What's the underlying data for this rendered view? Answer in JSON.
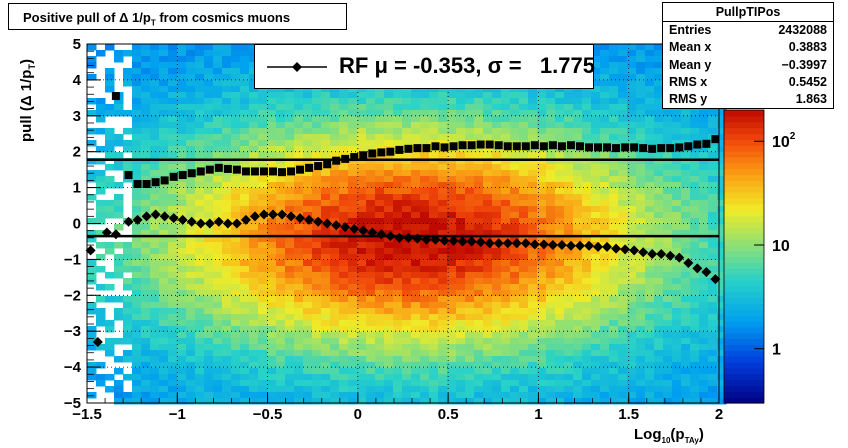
{
  "title": {
    "prefix": "Positive pull of ",
    "delta": "Δ",
    "mid": " 1/p",
    "sub": "T",
    "suffix": " from cosmics muons"
  },
  "stats": {
    "name": "PullpTIPos",
    "rows": [
      {
        "label": "Entries",
        "value": "2432088"
      },
      {
        "label": "Mean x",
        "value": "0.3883"
      },
      {
        "label": "Mean y",
        "value": "−0.3997"
      },
      {
        "label": "RMS x",
        "value": "0.5452"
      },
      {
        "label": "RMS y",
        "value": "1.863"
      }
    ]
  },
  "legend": {
    "text": "RF μ = -0.353, σ =   1.775"
  },
  "axes": {
    "ylabel": "pull (Δ 1/p",
    "ylabel_sub": "T",
    "ylabel_close": ")",
    "xlabel": "Log",
    "xlabel_sub": "10",
    "xlabel_mid": "(p",
    "xlabel_sub2": "TAy",
    "xlabel_close": ")"
  },
  "colors": {
    "marker": "#000000",
    "line": "#000000"
  },
  "chart_data": {
    "type": "heatmap",
    "title": "Positive pull of Δ 1/pT from cosmics muons",
    "xlabel": "Log10(pTAy)",
    "ylabel": "pull (Δ 1/pT)",
    "xlim": [
      -1.5,
      2
    ],
    "ylim": [
      -5,
      5
    ],
    "x_ticks": [
      -1.5,
      -1,
      -0.5,
      0,
      0.5,
      1,
      1.5,
      2
    ],
    "x_tick_labels": [
      "−1.5",
      "−1",
      "−0.5",
      "0",
      "0.5",
      "1",
      "1.5",
      "2"
    ],
    "y_ticks": [
      -5,
      -4,
      -3,
      -2,
      -1,
      0,
      1,
      2,
      3,
      4,
      5
    ],
    "y_tick_labels": [
      "−5",
      "−4",
      "−3",
      "−2",
      "−1",
      "0",
      "1",
      "2",
      "3",
      "4",
      "5"
    ],
    "grid": true,
    "z_scale": "log",
    "z_range": [
      0.3,
      200
    ],
    "z_tick_labels": [
      {
        "v": 1,
        "t": "1"
      },
      {
        "v": 10,
        "t": "10"
      },
      {
        "v": 100,
        "t": "10",
        "sup": "2"
      }
    ],
    "density_peak": {
      "x": 0.3,
      "y": -0.4,
      "sigma_x": 0.55,
      "sigma_y": 1.86
    },
    "hlines": [
      {
        "name": "sigma",
        "y": 1.775
      },
      {
        "name": "mu",
        "y": -0.353
      }
    ],
    "series": [
      {
        "name": "sigma",
        "marker": "square",
        "x": [
          -1.34,
          -1.27,
          -1.22,
          -1.17,
          -1.12,
          -1.07,
          -1.02,
          -0.97,
          -0.92,
          -0.87,
          -0.82,
          -0.77,
          -0.72,
          -0.67,
          -0.62,
          -0.57,
          -0.52,
          -0.47,
          -0.42,
          -0.37,
          -0.32,
          -0.27,
          -0.22,
          -0.17,
          -0.12,
          -0.07,
          -0.02,
          0.03,
          0.08,
          0.13,
          0.18,
          0.23,
          0.28,
          0.33,
          0.38,
          0.43,
          0.48,
          0.53,
          0.58,
          0.63,
          0.68,
          0.73,
          0.78,
          0.83,
          0.88,
          0.93,
          0.98,
          1.03,
          1.08,
          1.13,
          1.18,
          1.23,
          1.28,
          1.33,
          1.38,
          1.43,
          1.48,
          1.53,
          1.58,
          1.63,
          1.68,
          1.73,
          1.78,
          1.83,
          1.88,
          1.93,
          1.98
        ],
        "values": [
          3.55,
          1.35,
          1.1,
          1.1,
          1.15,
          1.2,
          1.3,
          1.35,
          1.4,
          1.45,
          1.5,
          1.55,
          1.52,
          1.5,
          1.45,
          1.45,
          1.45,
          1.45,
          1.43,
          1.45,
          1.5,
          1.55,
          1.6,
          1.65,
          1.75,
          1.8,
          1.85,
          1.9,
          1.95,
          1.98,
          2.0,
          2.05,
          2.08,
          2.1,
          2.1,
          2.15,
          2.12,
          2.15,
          2.18,
          2.18,
          2.2,
          2.2,
          2.18,
          2.15,
          2.15,
          2.15,
          2.18,
          2.15,
          2.18,
          2.15,
          2.18,
          2.15,
          2.12,
          2.12,
          2.12,
          2.1,
          2.12,
          2.12,
          2.1,
          2.08,
          2.1,
          2.1,
          2.12,
          2.15,
          2.2,
          2.22,
          2.35
        ]
      },
      {
        "name": "mu",
        "marker": "diamond",
        "x": [
          -1.48,
          -1.44,
          -1.39,
          -1.34,
          -1.27,
          -1.22,
          -1.17,
          -1.12,
          -1.07,
          -1.02,
          -0.97,
          -0.92,
          -0.87,
          -0.82,
          -0.77,
          -0.72,
          -0.67,
          -0.62,
          -0.57,
          -0.52,
          -0.47,
          -0.42,
          -0.37,
          -0.32,
          -0.27,
          -0.22,
          -0.17,
          -0.12,
          -0.07,
          -0.02,
          0.03,
          0.08,
          0.13,
          0.18,
          0.23,
          0.28,
          0.33,
          0.38,
          0.43,
          0.48,
          0.53,
          0.58,
          0.63,
          0.68,
          0.73,
          0.78,
          0.83,
          0.88,
          0.93,
          0.98,
          1.03,
          1.08,
          1.13,
          1.18,
          1.23,
          1.28,
          1.33,
          1.38,
          1.43,
          1.48,
          1.53,
          1.58,
          1.63,
          1.68,
          1.73,
          1.78,
          1.83,
          1.88,
          1.93,
          1.98
        ],
        "values": [
          -0.75,
          -3.3,
          -0.25,
          -0.3,
          0.05,
          0.1,
          0.2,
          0.25,
          0.2,
          0.15,
          0.1,
          0.05,
          0.0,
          0.0,
          0.05,
          0.0,
          0.0,
          0.1,
          0.2,
          0.25,
          0.25,
          0.25,
          0.2,
          0.15,
          0.1,
          0.05,
          0.0,
          -0.05,
          -0.1,
          -0.15,
          -0.2,
          -0.25,
          -0.3,
          -0.35,
          -0.4,
          -0.4,
          -0.42,
          -0.45,
          -0.45,
          -0.48,
          -0.48,
          -0.5,
          -0.5,
          -0.52,
          -0.55,
          -0.55,
          -0.55,
          -0.55,
          -0.55,
          -0.58,
          -0.58,
          -0.6,
          -0.6,
          -0.62,
          -0.62,
          -0.62,
          -0.65,
          -0.65,
          -0.7,
          -0.72,
          -0.75,
          -0.8,
          -0.85,
          -0.85,
          -0.9,
          -0.95,
          -1.1,
          -1.25,
          -1.35,
          -1.55
        ]
      }
    ]
  }
}
